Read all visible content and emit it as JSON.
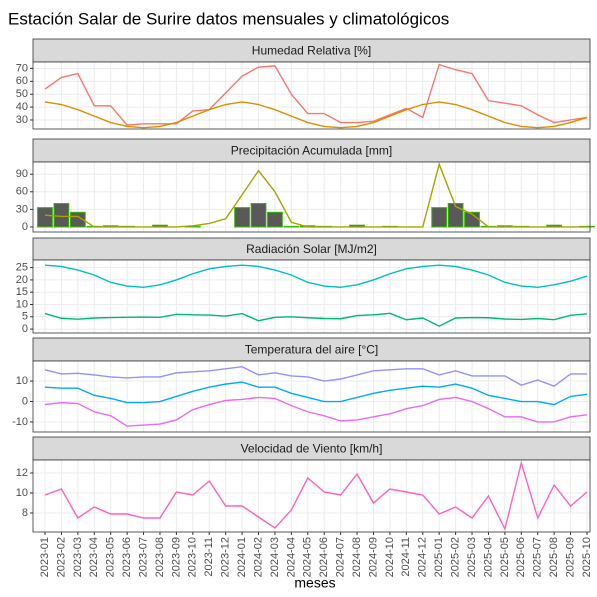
{
  "title": "Estación Salar de Surire datos mensuales y climatológicos",
  "x_axis": {
    "label": "meses",
    "categories": [
      "2023-01",
      "2023-02",
      "2023-03",
      "2023-04",
      "2023-05",
      "2023-06",
      "2023-07",
      "2023-08",
      "2023-09",
      "2023-10",
      "2023-11",
      "2023-12",
      "2024-01",
      "2024-02",
      "2024-03",
      "2024-04",
      "2024-05",
      "2024-06",
      "2024-07",
      "2024-08",
      "2024-09",
      "2024-10",
      "2024-11",
      "2024-12",
      "2025-01",
      "2025-02",
      "2025-03",
      "2025-04",
      "2025-05",
      "2025-06",
      "2025-07",
      "2025-08",
      "2025-09",
      "2025-10"
    ]
  },
  "chart_data": [
    {
      "type": "line",
      "title": "Humedad Relativa [%]",
      "ylim": [
        23,
        75
      ],
      "yticks": [
        30,
        40,
        50,
        60,
        70
      ],
      "grid": true,
      "series": [
        {
          "color": "#f8766d",
          "values": [
            54,
            63,
            66,
            41,
            41,
            26,
            27,
            27,
            27,
            37,
            38,
            51,
            64,
            71,
            72,
            50,
            35,
            35,
            28,
            28,
            29,
            34,
            39,
            32,
            73,
            69,
            66,
            45,
            43,
            41,
            34,
            28,
            30,
            32
          ]
        },
        {
          "color": "#d89000",
          "values": [
            44,
            42,
            38,
            33,
            28,
            25,
            24,
            25,
            28,
            33,
            38,
            42,
            44,
            42,
            38,
            33,
            28,
            25,
            24,
            25,
            28,
            33,
            38,
            42,
            44,
            42,
            38,
            33,
            28,
            25,
            24,
            25,
            28,
            32
          ]
        }
      ]
    },
    {
      "type": "combo",
      "title": "Precipitación Acumulada [mm]",
      "ylim": [
        -8.6,
        110.8
      ],
      "yticks": [
        0,
        30,
        60,
        90
      ],
      "grid": true,
      "series": [
        {
          "type": "bar",
          "color": "#595959",
          "border": "#39b600",
          "values": [
            33,
            40,
            25,
            1,
            2,
            1,
            0,
            3,
            0,
            1,
            0,
            0,
            33,
            40,
            25,
            1,
            2,
            1,
            0,
            3,
            0,
            1,
            0,
            0,
            33,
            40,
            25,
            1,
            2,
            1,
            0,
            3,
            0,
            1
          ]
        },
        {
          "type": "line",
          "color": "#a3a500",
          "values": [
            20,
            18,
            18,
            0,
            0,
            0,
            0,
            0,
            0,
            2,
            6,
            14,
            55,
            96,
            60,
            8,
            0,
            0,
            0,
            0,
            0,
            0,
            0,
            0,
            107,
            35,
            22,
            0,
            0,
            0,
            0,
            0,
            0,
            0
          ]
        }
      ]
    },
    {
      "type": "line",
      "title": "Radiación Solar [MJ/m2]",
      "ylim": [
        -1.6,
        28.1
      ],
      "yticks": [
        0,
        5,
        10,
        15,
        20,
        25
      ],
      "grid": true,
      "series": [
        {
          "color": "#00bfc4",
          "values": [
            26,
            25.5,
            24,
            22,
            19,
            17.5,
            17,
            18,
            20,
            22.5,
            24.5,
            25.5,
            26,
            25.5,
            24,
            22,
            19,
            17.5,
            17,
            18,
            20,
            22.5,
            24.5,
            25.5,
            26,
            25.5,
            24,
            22,
            19,
            17.5,
            17,
            18,
            19.5,
            21.5
          ]
        },
        {
          "color": "#00b878",
          "values": [
            6.3,
            4.4,
            4,
            4.5,
            4.7,
            4.8,
            4.9,
            4.8,
            6,
            5.8,
            5.7,
            5.3,
            6.3,
            3.4,
            4.8,
            5,
            4.6,
            4.3,
            4.2,
            5.5,
            5.8,
            6.4,
            3.8,
            4.5,
            1.2,
            4.5,
            4.7,
            4.6,
            4.1,
            3.9,
            4.3,
            3.8,
            5.6,
            6.2
          ]
        }
      ]
    },
    {
      "type": "line",
      "title": "Temperatura del aire [°C]",
      "ylim": [
        -14.9,
        19.8
      ],
      "yticks": [
        -10,
        0,
        10
      ],
      "grid": true,
      "series": [
        {
          "color": "#9590ff",
          "values": [
            15.5,
            13.5,
            13.8,
            13,
            12,
            11.5,
            12,
            12,
            14,
            14.5,
            15,
            16,
            17,
            13,
            14,
            12.5,
            12,
            10,
            11,
            13,
            15,
            15.5,
            16,
            16,
            13,
            15,
            12.5,
            12.5,
            12.5,
            8,
            10.5,
            7.5,
            13.5,
            13.5
          ]
        },
        {
          "color": "#00a9ff",
          "values": [
            7,
            6.5,
            6.5,
            3,
            1.5,
            -0.5,
            -0.5,
            0,
            2.5,
            5,
            7,
            8.5,
            9.5,
            7,
            7,
            4,
            2,
            0,
            0,
            2,
            4,
            5.5,
            6.5,
            7.5,
            7,
            8.5,
            6.5,
            3,
            1.5,
            0,
            0,
            -1.5,
            2.5,
            3.5
          ]
        },
        {
          "color": "#e76bf3",
          "values": [
            -1.5,
            -0.5,
            -1,
            -5,
            -7,
            -12,
            -11.5,
            -11,
            -9,
            -4,
            -1.5,
            0.5,
            1,
            2,
            1.5,
            -2,
            -5,
            -7,
            -9.5,
            -9,
            -7.5,
            -6,
            -3.5,
            -2,
            1,
            2,
            0,
            -3.5,
            -7.5,
            -7.5,
            -10,
            -10,
            -7.5,
            -6.5
          ]
        }
      ]
    },
    {
      "type": "line",
      "title": "Velocidad de Viento [km/h]",
      "ylim": [
        6.1,
        13.3
      ],
      "yticks": [
        8,
        10,
        12
      ],
      "grid": true,
      "series": [
        {
          "color": "#ff62bc",
          "values": [
            9.8,
            10.4,
            7.5,
            8.6,
            7.9,
            7.9,
            7.5,
            7.5,
            10.1,
            9.8,
            11.2,
            8.7,
            8.7,
            7.6,
            6.5,
            8.3,
            11.5,
            10.1,
            9.8,
            11.9,
            9.0,
            10.4,
            10.1,
            9.8,
            7.9,
            8.6,
            7.5,
            9.7,
            6.4,
            13.0,
            7.5,
            10.8,
            8.7,
            10.1
          ]
        }
      ]
    }
  ]
}
